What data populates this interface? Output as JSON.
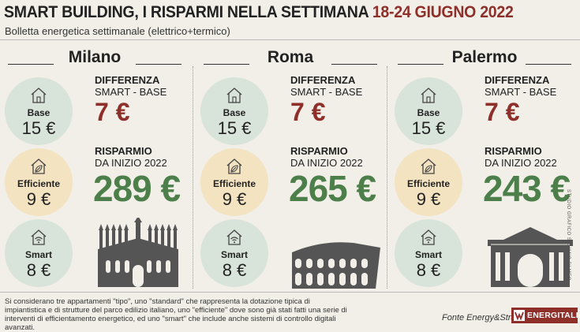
{
  "header": {
    "title": "SMART BUILDING, I RISPARMI NELLA SETTIMANA",
    "dates": "18-24 GIUGNO 2022",
    "subtitle": "Bolletta energetica settimanale (elettrico+termico)"
  },
  "labels": {
    "base": "Base",
    "efficient": "Efficiente",
    "smart": "Smart",
    "difference_title": "DIFFERENZA",
    "difference_sub": "SMART - BASE",
    "savings_title": "RISPARMIO",
    "savings_sub": "DA INIZIO 2022"
  },
  "cities": [
    {
      "name": "Milano",
      "base": "15 €",
      "efficient": "9 €",
      "smart": "8 €",
      "difference": "7 €",
      "savings": "289 €",
      "monument": "duomo-di-milano"
    },
    {
      "name": "Roma",
      "base": "15 €",
      "efficient": "9 €",
      "smart": "8 €",
      "difference": "7 €",
      "savings": "265 €",
      "monument": "colosseo"
    },
    {
      "name": "Palermo",
      "base": "15 €",
      "efficient": "9 €",
      "smart": "8 €",
      "difference": "7 €",
      "savings": "243 €",
      "monument": "teatro-politeama"
    }
  ],
  "credit": "STUDIO GRAFICO SILVANO DI MEO",
  "footnote": "Si considerano tre appartamenti \"tipo\", uno \"standard\" che rappresenta la dotazione tipica di impiantistica e di strutture del parco edilizio italiano, uno \"efficiente\" dove sono già stati fatti una serie di interventi di efficientamento energetico, ed uno \"smart\" che include anche sistemi di controllo digitali avanzati.",
  "source": "Fonte Energy&Strategy",
  "brand": "ENERGITALIA",
  "colors": {
    "accent": "#8e2f2a",
    "green": "#4d7f4b",
    "circle_green": "#d8e3da",
    "circle_beige": "#f3e3c1",
    "background": "#f1efe8"
  },
  "icons": {
    "base": "house-icon",
    "efficient": "house-leaf-icon",
    "smart": "house-wifi-icon"
  }
}
